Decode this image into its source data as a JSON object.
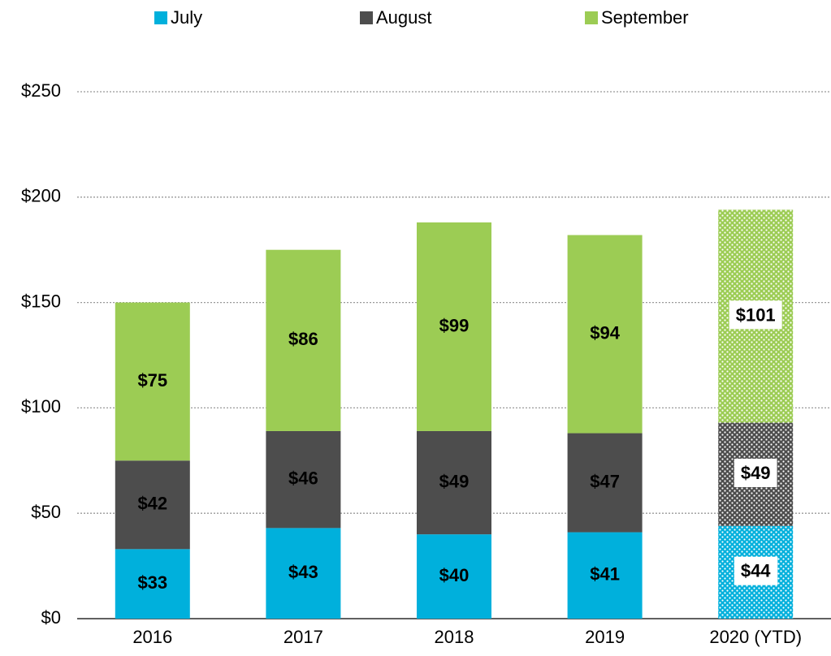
{
  "chart_data": {
    "type": "stacked_bar",
    "categories": [
      "2016",
      "2017",
      "2018",
      "2019",
      "2020 (YTD)"
    ],
    "series": [
      {
        "name": "July",
        "color": "#00b0dc",
        "label_color": "#000000",
        "values": [
          33,
          43,
          40,
          41,
          44
        ],
        "value_labels": [
          "$33",
          "$43",
          "$40",
          "$41",
          "$44"
        ]
      },
      {
        "name": "August",
        "color": "#4d4d4d",
        "label_color": "#ffffff",
        "values": [
          42,
          46,
          49,
          47,
          49
        ],
        "value_labels": [
          "$42",
          "$46",
          "$49",
          "$47",
          "$49"
        ]
      },
      {
        "name": "September",
        "color": "#9ccc54",
        "label_color": "#000000",
        "values": [
          75,
          86,
          99,
          94,
          101
        ],
        "value_labels": [
          "$75",
          "$86",
          "$99",
          "$94",
          "$101"
        ]
      }
    ],
    "patterned": [
      false,
      false,
      false,
      false,
      true
    ],
    "ylim": [
      0,
      250
    ],
    "yticks": [
      {
        "value": 0,
        "label": "$0"
      },
      {
        "value": 50,
        "label": "$50"
      },
      {
        "value": 100,
        "label": "$100"
      },
      {
        "value": 150,
        "label": "$150"
      },
      {
        "value": 200,
        "label": "$200"
      },
      {
        "value": 250,
        "label": "$250"
      }
    ],
    "grid": true,
    "legend": "top"
  }
}
